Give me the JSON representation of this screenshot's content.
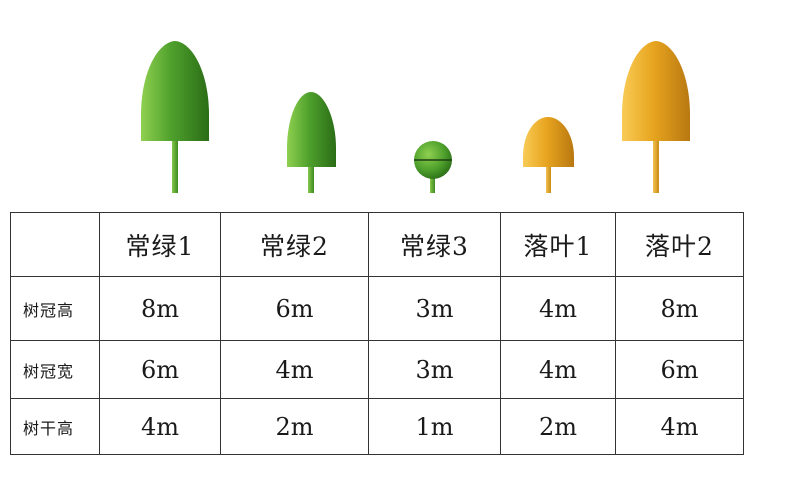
{
  "trees": [
    {
      "key": "evergreen-1",
      "shape": "cone",
      "crown_height": 8,
      "crown_width": 6,
      "trunk_height": 4,
      "color": "#4ea02c"
    },
    {
      "key": "evergreen-2",
      "shape": "cone",
      "crown_height": 6,
      "crown_width": 4,
      "trunk_height": 2,
      "color": "#4ea02c"
    },
    {
      "key": "evergreen-3",
      "shape": "sphere",
      "crown_height": 3,
      "crown_width": 3,
      "trunk_height": 1,
      "color": "#4ea02c"
    },
    {
      "key": "deciduous-1",
      "shape": "cone",
      "crown_height": 4,
      "crown_width": 4,
      "trunk_height": 2,
      "color": "#e8a520"
    },
    {
      "key": "deciduous-2",
      "shape": "cone",
      "crown_height": 8,
      "crown_width": 6,
      "trunk_height": 4,
      "color": "#e8a520"
    }
  ],
  "table": {
    "corner": "",
    "headers": [
      "常绿1",
      "常绿2",
      "常绿3",
      "落叶1",
      "落叶2"
    ],
    "rows": [
      {
        "label": "树冠高",
        "values": [
          "8m",
          "6m",
          "3m",
          "4m",
          "8m"
        ]
      },
      {
        "label": "树冠宽",
        "values": [
          "6m",
          "4m",
          "3m",
          "4m",
          "6m"
        ]
      },
      {
        "label": "树干高",
        "values": [
          "4m",
          "2m",
          "1m",
          "2m",
          "4m"
        ]
      }
    ]
  }
}
